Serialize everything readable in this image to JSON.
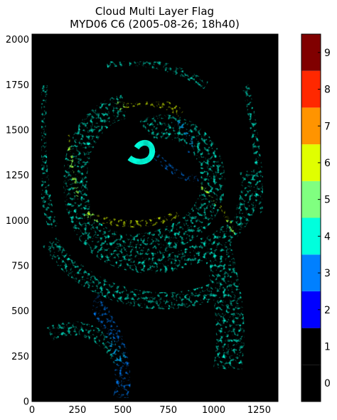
{
  "chart_data": {
    "type": "heatmap",
    "title": "Cloud Multi Layer Flag",
    "subtitle": "MYD06 C6 (2005-08-26; 18h40)",
    "xlim": [
      0,
      1354
    ],
    "ylim": [
      0,
      2030
    ],
    "x_ticks": [
      "0",
      "250",
      "500",
      "750",
      "1000",
      "1250"
    ],
    "y_ticks": [
      "0",
      "250",
      "500",
      "750",
      "1000",
      "1250",
      "1500",
      "1750",
      "2000"
    ],
    "colorbar": {
      "range": [
        0,
        10
      ],
      "ticks": [
        "0",
        "1",
        "2",
        "3",
        "4",
        "5",
        "6",
        "7",
        "8",
        "9"
      ],
      "colors": [
        "#000000",
        "#000000",
        "#0000ff",
        "#0080ff",
        "#00ffdd",
        "#80ff80",
        "#e0ff00",
        "#ff9400",
        "#ff2800",
        "#800000"
      ]
    },
    "dominant_values": [
      0,
      4,
      3,
      6
    ]
  }
}
